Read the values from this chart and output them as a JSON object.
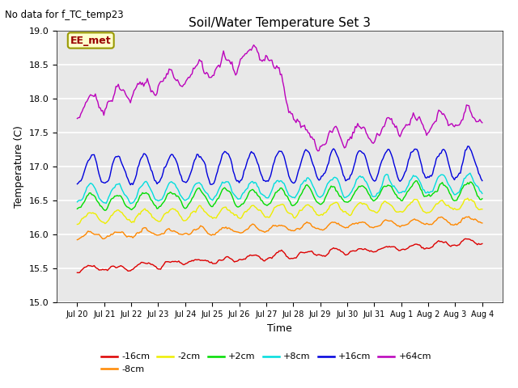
{
  "title": "Soil/Water Temperature Set 3",
  "xlabel": "Time",
  "ylabel": "Temperature (C)",
  "ylim": [
    15.0,
    19.0
  ],
  "yticks": [
    15.0,
    15.5,
    16.0,
    16.5,
    17.0,
    17.5,
    18.0,
    18.5,
    19.0
  ],
  "no_data_text": "No data for f_TC_temp23",
  "ee_met_label": "EE_met",
  "background_color": "#e8e8e8",
  "fig_background": "#ffffff",
  "series": [
    {
      "label": "-16cm",
      "color": "#dd0000",
      "base": 15.48,
      "trend": 0.42,
      "amp": 0.04,
      "noise": 0.03
    },
    {
      "label": "-8cm",
      "color": "#ff8800",
      "base": 15.98,
      "trend": 0.24,
      "amp": 0.05,
      "noise": 0.03
    },
    {
      "label": "-2cm",
      "color": "#eeee00",
      "base": 16.25,
      "trend": 0.2,
      "amp": 0.08,
      "noise": 0.04
    },
    {
      "label": "+2cm",
      "color": "#00dd00",
      "base": 16.48,
      "trend": 0.18,
      "amp": 0.12,
      "noise": 0.04
    },
    {
      "label": "+8cm",
      "color": "#00dddd",
      "base": 16.6,
      "trend": 0.15,
      "amp": 0.14,
      "noise": 0.04
    },
    {
      "label": "+16cm",
      "color": "#0000dd",
      "base": 16.95,
      "trend": 0.1,
      "amp": 0.22,
      "noise": 0.05
    },
    {
      "label": "+64cm",
      "color": "#bb00bb",
      "base": 17.85,
      "trend": 0.0,
      "amp": 0.18,
      "noise": 0.06
    }
  ],
  "xtick_labels": [
    "Jul 20",
    "Jul 21",
    "Jul 22",
    "Jul 23",
    "Jul 24",
    "Jul 25",
    "Jul 26",
    "Jul 27",
    "Jul 28",
    "Jul 29",
    "Jul 30",
    "Jul 31",
    "Aug 1",
    "Aug 2",
    "Aug 3",
    "Aug 4"
  ],
  "n_points": 336
}
